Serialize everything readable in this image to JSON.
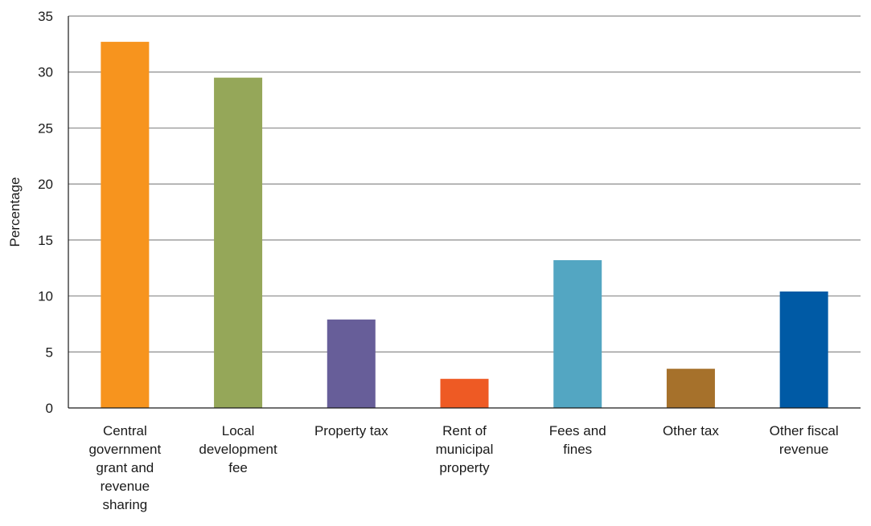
{
  "chart_data": {
    "type": "bar",
    "title": "",
    "xlabel": "",
    "ylabel": "Percentage",
    "ylim": [
      0,
      35
    ],
    "yticks": [
      0,
      5,
      10,
      15,
      20,
      25,
      30,
      35
    ],
    "grid": true,
    "categories": [
      "Central government grant and revenue sharing",
      "Local development fee",
      "Property tax",
      "Rent of municipal property",
      "Fees and fines",
      "Other tax",
      "Other fiscal revenue"
    ],
    "category_lines": [
      [
        "Central",
        "government",
        "grant and",
        "revenue",
        "sharing"
      ],
      [
        "Local",
        "development",
        "fee"
      ],
      [
        "Property tax"
      ],
      [
        "Rent of",
        "municipal",
        "property"
      ],
      [
        "Fees and",
        "fines"
      ],
      [
        "Other tax"
      ],
      [
        "Other fiscal",
        "revenue"
      ]
    ],
    "values": [
      32.7,
      29.5,
      7.9,
      2.6,
      13.2,
      3.5,
      10.4
    ],
    "colors": [
      "#f7941e",
      "#95a759",
      "#675e99",
      "#ee5a24",
      "#53a6c2",
      "#a6712b",
      "#005aa5"
    ]
  }
}
